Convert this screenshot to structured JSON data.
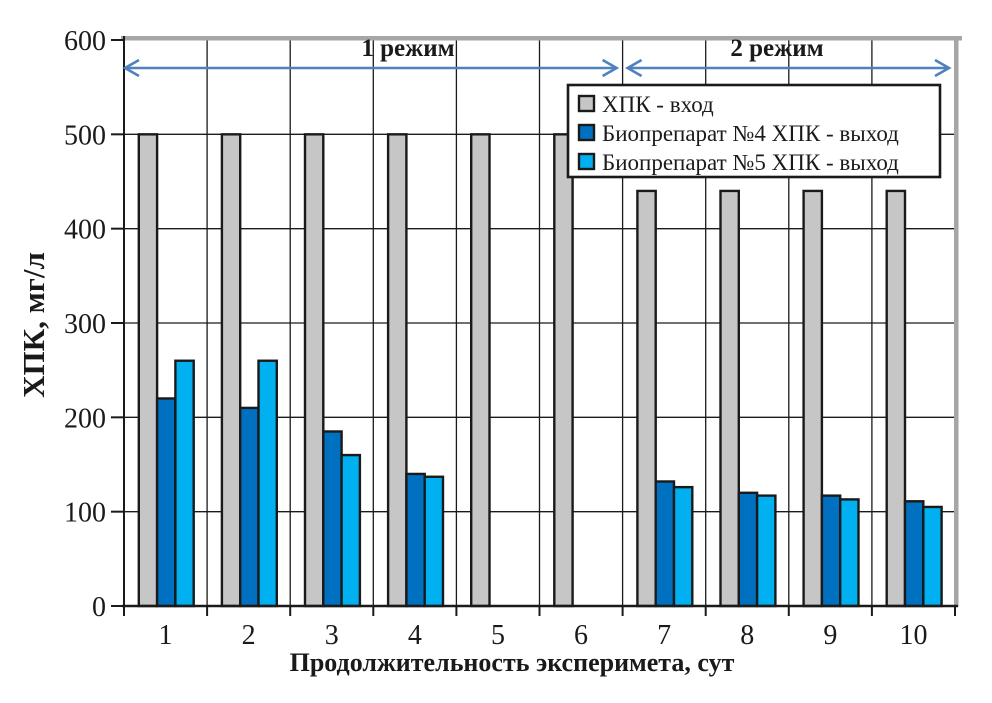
{
  "chart_data": {
    "type": "bar",
    "categories": [
      "1",
      "2",
      "3",
      "4",
      "5",
      "6",
      "7",
      "8",
      "9",
      "10"
    ],
    "series": [
      {
        "name": "ХПК - вход",
        "color": "#C6C6C6",
        "values": [
          500,
          500,
          500,
          500,
          500,
          500,
          440,
          440,
          440,
          440
        ]
      },
      {
        "name": "Биопрепарат №4 ХПК - выход",
        "color": "#0070C0",
        "values": [
          220,
          210,
          185,
          140,
          null,
          null,
          132,
          120,
          117,
          111
        ]
      },
      {
        "name": "Биопрепарат №5 ХПК - выход",
        "color": "#00B0F0",
        "values": [
          260,
          260,
          160,
          137,
          null,
          null,
          126,
          117,
          113,
          105
        ]
      }
    ],
    "xlabel": "Продолжительность  эксперимета, сут",
    "ylabel": "ХПК, мг/л",
    "ylim": [
      0,
      600
    ],
    "ytick_step": 100,
    "yticks": [
      "0",
      "100",
      "200",
      "300",
      "400",
      "500",
      "600"
    ],
    "grid": true,
    "legend_position": "top-right",
    "bar_outline_color": "#1a1a1a",
    "plot_border_color": "#A6A6A6",
    "annotation_color": "#4F81BD",
    "annotations": [
      {
        "label": "1 режим",
        "from_category": 1,
        "to_category": 6
      },
      {
        "label": "2 режим",
        "from_category": 7,
        "to_category": 10
      }
    ]
  }
}
